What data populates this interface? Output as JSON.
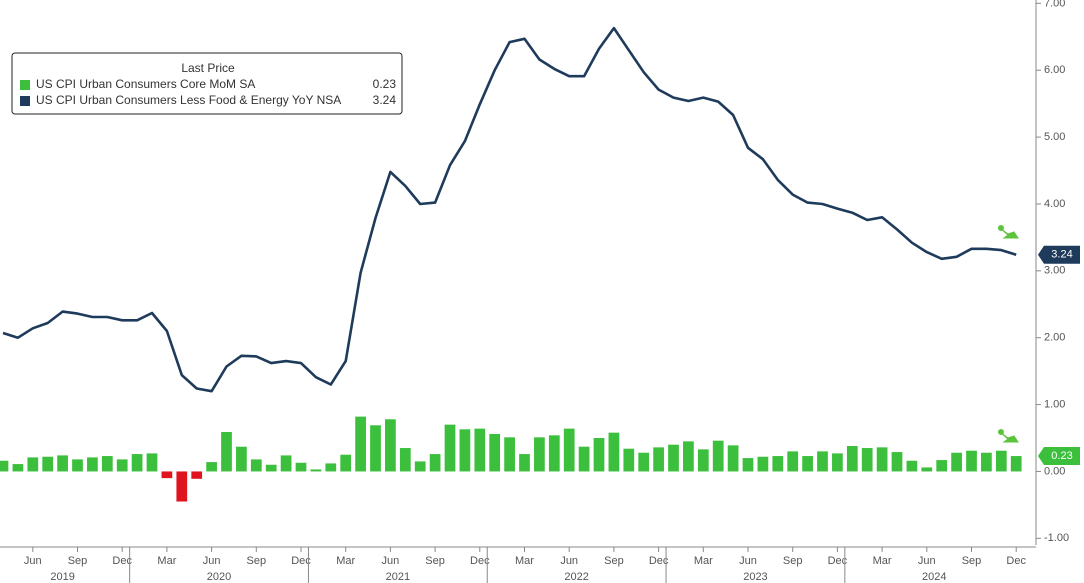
{
  "chart_data": {
    "type": "combo",
    "legend_title": "Last Price",
    "categories": [
      null,
      null,
      "Jun",
      null,
      null,
      "Sep",
      null,
      null,
      "Dec",
      null,
      null,
      "Mar",
      null,
      null,
      "Jun",
      null,
      null,
      "Sep",
      null,
      null,
      "Dec",
      null,
      null,
      "Mar",
      null,
      null,
      "Jun",
      null,
      null,
      "Sep",
      null,
      null,
      "Dec",
      null,
      null,
      "Mar",
      null,
      null,
      "Jun",
      null,
      null,
      "Sep",
      null,
      null,
      "Dec",
      null,
      null,
      "Mar",
      null,
      null,
      "Jun",
      null,
      null,
      "Sep",
      null,
      null,
      "Dec",
      null,
      null,
      "Mar",
      null,
      null,
      "Jun",
      null,
      null,
      "Sep",
      null,
      null,
      "Dec"
    ],
    "year_labels": [
      "2019",
      "2020",
      "2021",
      "2022",
      "2023",
      "2024"
    ],
    "ylim": [
      -1.1,
      7.05
    ],
    "yticks": [
      {
        "value": 7,
        "label": "7.00"
      },
      {
        "value": 6,
        "label": "6.00"
      },
      {
        "value": 5,
        "label": "5.00"
      },
      {
        "value": 4,
        "label": "4.00"
      },
      {
        "value": 3,
        "label": "3.00"
      },
      {
        "value": 2,
        "label": "2.00"
      },
      {
        "value": 1,
        "label": "1.00"
      },
      {
        "value": 0,
        "label": "0.00"
      },
      {
        "value": -1,
        "label": "-1.00"
      }
    ],
    "series": [
      {
        "name": "US CPI Urban Consumers Core MoM SA",
        "type": "bar",
        "color": "#3cbf3c",
        "negative_color": "#e0141e",
        "values": [
          0.16,
          0.11,
          0.21,
          0.22,
          0.24,
          0.18,
          0.21,
          0.23,
          0.18,
          0.26,
          0.27,
          -0.1,
          -0.45,
          -0.11,
          0.14,
          0.59,
          0.37,
          0.18,
          0.1,
          0.24,
          0.13,
          0.03,
          0.12,
          0.25,
          0.82,
          0.69,
          0.78,
          0.35,
          0.15,
          0.26,
          0.7,
          0.63,
          0.64,
          0.56,
          0.51,
          0.26,
          0.51,
          0.54,
          0.64,
          0.37,
          0.5,
          0.58,
          0.34,
          0.28,
          0.36,
          0.4,
          0.45,
          0.33,
          0.46,
          0.39,
          0.2,
          0.22,
          0.23,
          0.3,
          0.23,
          0.3,
          0.27,
          0.38,
          0.35,
          0.36,
          0.29,
          0.16,
          0.06,
          0.17,
          0.28,
          0.31,
          0.28,
          0.31,
          0.23
        ]
      },
      {
        "name": "US CPI Urban Consumers Less Food & Energy YoY NSA",
        "type": "line",
        "color": "#1f3b5c",
        "values": [
          2.07,
          2.0,
          2.14,
          2.22,
          2.39,
          2.36,
          2.31,
          2.31,
          2.26,
          2.26,
          2.37,
          2.1,
          1.44,
          1.24,
          1.2,
          1.57,
          1.73,
          1.72,
          1.62,
          1.65,
          1.62,
          1.41,
          1.3,
          1.65,
          2.97,
          3.79,
          4.48,
          4.27,
          4.0,
          4.02,
          4.58,
          4.94,
          5.49,
          6.0,
          6.42,
          6.47,
          6.16,
          6.02,
          5.91,
          5.91,
          6.32,
          6.63,
          6.3,
          5.97,
          5.71,
          5.59,
          5.54,
          5.59,
          5.53,
          5.33,
          4.84,
          4.67,
          4.36,
          4.14,
          4.02,
          4.0,
          3.93,
          3.87,
          3.76,
          3.8,
          3.62,
          3.42,
          3.28,
          3.18,
          3.21,
          3.33,
          3.33,
          3.31,
          3.24
        ]
      }
    ]
  }
}
